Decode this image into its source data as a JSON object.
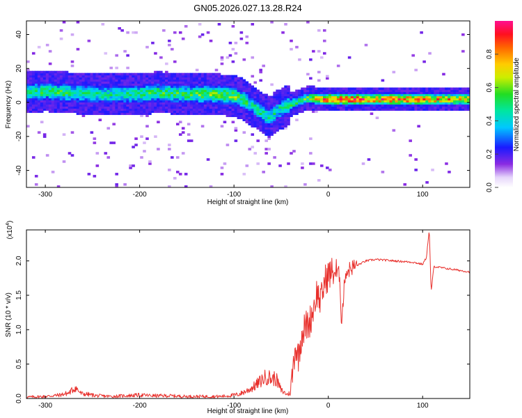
{
  "figure": {
    "title": "GN05.2026.027.13.28.R24"
  },
  "chart_data": [
    {
      "type": "heatmap",
      "xlabel": "Height of straight line (km)",
      "ylabel": "Frequency (Hz)",
      "xlim": [
        -320,
        150
      ],
      "ylim": [
        -50,
        48
      ],
      "xticks": [
        -300,
        -200,
        -100,
        0,
        100
      ],
      "yticks": [
        -40,
        -20,
        0,
        20,
        40
      ],
      "colorbar": {
        "label": "Normalized spectral amplitude",
        "range": [
          0,
          1
        ],
        "ticks": [
          "0.0",
          "0.2",
          "0.4",
          "0.6",
          "0.8"
        ],
        "tick_values": [
          0,
          0.2,
          0.4,
          0.6,
          0.8
        ],
        "colormap": "rainbow (white-purple-blue-cyan-green-yellow-red-magenta)"
      },
      "ridge": {
        "x": [
          -320,
          -300,
          -280,
          -250,
          -220,
          -200,
          -180,
          -150,
          -120,
          -100,
          -90,
          -80,
          -70,
          -62,
          -55,
          -48,
          -40,
          -30,
          -20,
          -10,
          0,
          30,
          60,
          90,
          120,
          150
        ],
        "y": [
          6,
          7,
          6,
          5,
          5,
          5,
          6,
          5,
          5,
          4,
          2,
          -2,
          -6,
          -9,
          -5,
          -3,
          -1,
          1,
          3,
          2,
          2,
          2,
          2,
          2,
          2,
          2
        ],
        "amplitude": [
          0.45,
          0.5,
          0.5,
          0.45,
          0.45,
          0.5,
          0.5,
          0.5,
          0.55,
          0.55,
          0.5,
          0.45,
          0.5,
          0.45,
          0.45,
          0.45,
          0.5,
          0.5,
          0.55,
          0.75,
          0.85,
          0.85,
          0.8,
          0.8,
          0.75,
          0.7
        ]
      }
    },
    {
      "type": "line",
      "xlabel": "Height of straight line (km)",
      "ylabel": "SNR (10 * v/v)",
      "multiplier_label": "(x10",
      "multiplier_exp": "4",
      "multiplier_close": ")",
      "xlim": [
        -320,
        150
      ],
      "ylim": [
        0,
        2.45
      ],
      "xticks": [
        -300,
        -200,
        -100,
        0,
        100
      ],
      "yticks": [
        "0.0",
        "0.5",
        "1.0",
        "1.5",
        "2.0"
      ],
      "ytick_values": [
        0,
        0.5,
        1.0,
        1.5,
        2.0
      ],
      "color": "#e8302c",
      "series": [
        {
          "x": [
            -320,
            -300,
            -285,
            -275,
            -268,
            -262,
            -255,
            -245,
            -230,
            -215,
            -200,
            -185,
            -170,
            -150,
            -130,
            -115,
            -105,
            -95,
            -85,
            -78,
            -72,
            -68,
            -64,
            -60,
            -56,
            -50,
            -44,
            -40,
            -37,
            -35,
            -32,
            -28,
            -24,
            -20,
            -16,
            -12,
            -8,
            -4,
            0,
            6,
            12,
            14,
            18,
            24,
            30,
            40,
            50,
            60,
            70,
            80,
            90,
            100,
            104,
            107,
            109,
            112,
            120,
            130,
            140,
            150
          ],
          "y": [
            0.02,
            0.03,
            0.05,
            0.08,
            0.16,
            0.07,
            0.06,
            0.04,
            0.03,
            0.04,
            0.05,
            0.04,
            0.04,
            0.03,
            0.03,
            0.03,
            0.04,
            0.06,
            0.12,
            0.18,
            0.25,
            0.3,
            0.32,
            0.28,
            0.3,
            0.12,
            0.06,
            0.08,
            0.5,
            0.78,
            0.6,
            0.95,
            1.05,
            1.1,
            1.3,
            1.55,
            1.4,
            1.7,
            1.8,
            1.85,
            1.8,
            1.1,
            1.82,
            1.9,
            1.93,
            2.0,
            2.02,
            2.01,
            2.0,
            1.99,
            1.98,
            1.95,
            2.05,
            2.45,
            1.55,
            1.92,
            1.9,
            1.88,
            1.86,
            1.84
          ]
        }
      ]
    }
  ]
}
